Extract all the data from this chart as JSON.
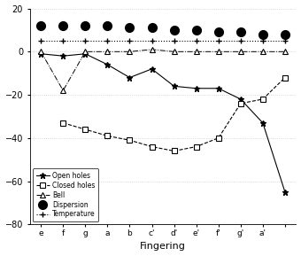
{
  "fingerings": [
    "e",
    "f",
    "g",
    "a",
    "b",
    "c'",
    "d'",
    "e'",
    "f'",
    "g'",
    "a'",
    ""
  ],
  "open_holes_x": [
    0,
    1,
    2,
    3,
    4,
    5,
    6,
    7,
    8,
    9,
    10,
    11
  ],
  "open_holes_y": [
    -1,
    -2,
    -1,
    -6,
    -12,
    -8,
    -16,
    -17,
    -17,
    -22,
    -33,
    -65
  ],
  "closed_holes_x": [
    1,
    2,
    3,
    4,
    5,
    6,
    7,
    8,
    9,
    10,
    11
  ],
  "closed_holes_y": [
    -33,
    -36,
    -39,
    -41,
    -44,
    -46,
    -44,
    -40,
    -24,
    -22,
    -12
  ],
  "bell_x": [
    0,
    1,
    2,
    3,
    4,
    5,
    6,
    7,
    8,
    9,
    10,
    11
  ],
  "bell_y": [
    0,
    -18,
    0,
    0,
    0,
    1,
    0,
    0,
    0,
    0,
    0,
    0
  ],
  "dispersion_x": [
    0,
    1,
    2,
    3,
    4,
    5,
    6,
    7,
    8,
    9,
    10,
    11
  ],
  "dispersion_y": [
    12,
    12,
    12,
    12,
    11,
    11,
    10,
    10,
    9,
    9,
    8,
    8
  ],
  "temperature_x": [
    0,
    1,
    2,
    3,
    4,
    5,
    6,
    7,
    8,
    9,
    10,
    11
  ],
  "temperature_y": [
    5,
    5,
    5,
    5,
    5,
    5,
    5,
    5,
    5,
    5,
    5,
    5
  ],
  "ylim": [
    -80,
    20
  ],
  "yticks": [
    -80,
    -60,
    -40,
    -20,
    0,
    20
  ],
  "xlabel": "Fingering",
  "grid_color": "#cccccc"
}
